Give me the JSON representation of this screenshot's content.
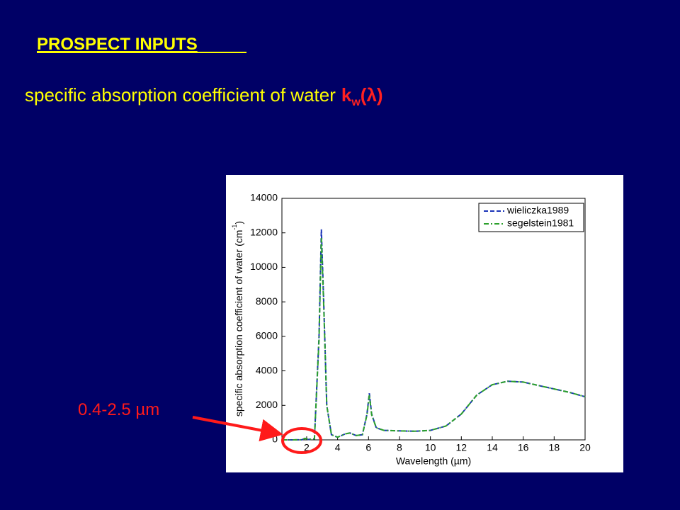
{
  "slide": {
    "heading": "PROSPECT INPUTS",
    "subtitle": [
      "specific absorption coefficient of water",
      "k",
      "w",
      "(λ)"
    ]
  },
  "annotation": "0.4-2.5 µm",
  "chart_data": {
    "type": "line",
    "xlabel": "Wavelength (µm)",
    "ylabel": [
      "specific absorption coefficient of water (cm",
      "-1",
      ")"
    ],
    "x": [
      0.4,
      1.0,
      1.7,
      1.9,
      2.1,
      2.5,
      2.8,
      2.95,
      3.1,
      3.3,
      3.6,
      4.0,
      4.5,
      4.8,
      5.2,
      5.6,
      5.9,
      6.05,
      6.2,
      6.5,
      7,
      8,
      9,
      10,
      11,
      12,
      13,
      14,
      15,
      16,
      17,
      18,
      19,
      20
    ],
    "series": [
      {
        "name": "wieliczka1989",
        "color": "#1a33b8",
        "dash": "6 3",
        "values": [
          0,
          0,
          10,
          100,
          20,
          60,
          6000,
          12200,
          8000,
          2000,
          300,
          150,
          350,
          400,
          250,
          300,
          1500,
          2700,
          1500,
          700,
          550,
          520,
          500,
          550,
          800,
          1500,
          2600,
          3200,
          3400,
          3350,
          3150,
          2950,
          2750,
          2500
        ]
      },
      {
        "name": "segelstein1981",
        "color": "#2ca02c",
        "dash": "7 3 2 3",
        "values": [
          0,
          0,
          10,
          90,
          20,
          60,
          5800,
          11700,
          7800,
          2000,
          300,
          150,
          350,
          400,
          250,
          300,
          1450,
          2600,
          1450,
          700,
          550,
          520,
          500,
          550,
          800,
          1500,
          2600,
          3200,
          3400,
          3350,
          3150,
          2950,
          2750,
          2500
        ]
      }
    ],
    "xlim": [
      0.4,
      20
    ],
    "xticks": [
      2,
      4,
      6,
      8,
      10,
      12,
      14,
      16,
      18,
      20
    ],
    "ylim": [
      0,
      14000
    ],
    "yticks": [
      0,
      2000,
      4000,
      6000,
      8000,
      10000,
      12000,
      14000
    ],
    "legend": "upper right"
  }
}
